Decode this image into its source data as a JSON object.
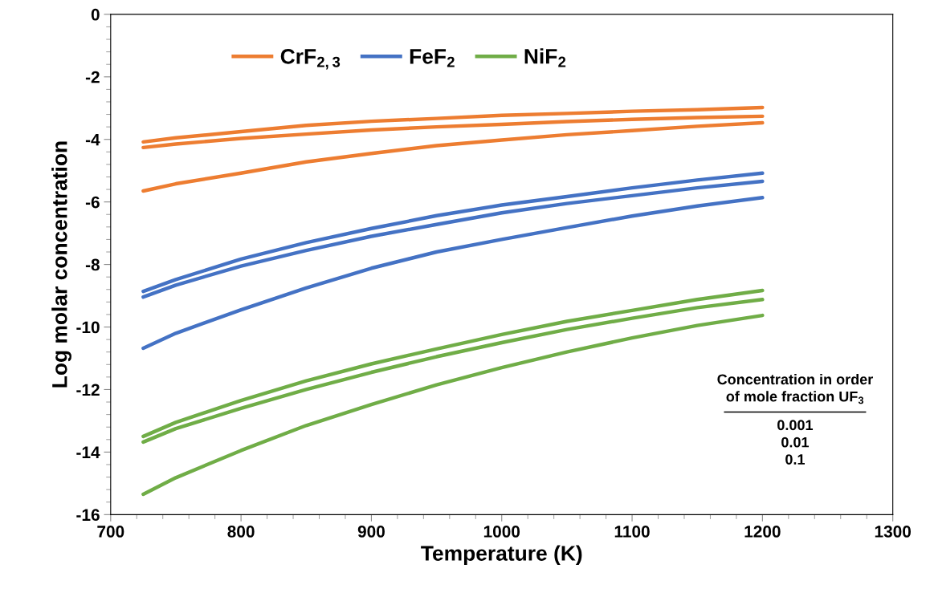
{
  "chart_data": {
    "type": "line",
    "xlabel": "Temperature (K)",
    "ylabel": "Log molar concentration",
    "x": [
      725,
      750,
      800,
      850,
      900,
      950,
      1000,
      1050,
      1100,
      1150,
      1200
    ],
    "series": [
      {
        "name": "CrF$_{2,3}$",
        "color": "#ed7d31",
        "values": [
          -4.08,
          -3.95,
          -3.75,
          -3.55,
          -3.42,
          -3.33,
          -3.23,
          -3.17,
          -3.1,
          -3.05,
          -2.98
        ]
      },
      {
        "color": "#ed7d31",
        "values": [
          -4.26,
          -4.15,
          -3.97,
          -3.83,
          -3.7,
          -3.6,
          -3.52,
          -3.43,
          -3.36,
          -3.3,
          -3.26
        ]
      },
      {
        "color": "#ed7d31",
        "values": [
          -5.65,
          -5.42,
          -5.08,
          -4.72,
          -4.45,
          -4.2,
          -4.02,
          -3.85,
          -3.72,
          -3.58,
          -3.47
        ]
      },
      {
        "name": "FeF$_{2}$",
        "color": "#4472c4",
        "values": [
          -8.86,
          -8.48,
          -7.83,
          -7.3,
          -6.85,
          -6.44,
          -6.1,
          -5.83,
          -5.55,
          -5.3,
          -5.08
        ]
      },
      {
        "color": "#4472c4",
        "values": [
          -9.04,
          -8.66,
          -8.05,
          -7.55,
          -7.1,
          -6.72,
          -6.35,
          -6.05,
          -5.8,
          -5.55,
          -5.34
        ]
      },
      {
        "color": "#4472c4",
        "values": [
          -10.68,
          -10.2,
          -9.45,
          -8.75,
          -8.12,
          -7.6,
          -7.2,
          -6.82,
          -6.45,
          -6.13,
          -5.86
        ]
      },
      {
        "name": "NiF$_{2}$",
        "color": "#70ad47",
        "values": [
          -13.5,
          -13.05,
          -12.35,
          -11.72,
          -11.18,
          -10.7,
          -10.24,
          -9.82,
          -9.47,
          -9.12,
          -8.83
        ]
      },
      {
        "color": "#70ad47",
        "values": [
          -13.68,
          -13.25,
          -12.6,
          -12.0,
          -11.45,
          -10.95,
          -10.5,
          -10.08,
          -9.72,
          -9.38,
          -9.12
        ]
      },
      {
        "color": "#70ad47",
        "values": [
          -15.35,
          -14.82,
          -13.95,
          -13.15,
          -12.48,
          -11.85,
          -11.3,
          -10.8,
          -10.35,
          -9.95,
          -9.63
        ]
      }
    ],
    "xlim": [
      700,
      1300
    ],
    "xticks": [
      700,
      800,
      900,
      1000,
      1100,
      1200,
      1300
    ],
    "ylim": [
      -16,
      0
    ],
    "yticks": [
      -16,
      -14,
      -12,
      -10,
      -8,
      -6,
      -4,
      -2,
      0
    ],
    "grid": false,
    "legend": "top",
    "marker": "none",
    "line_style": "solid",
    "annotations": [
      "Concentration in order\nof mole fraction UF$_{3}$",
      "0.001\n0.01\n0.1"
    ]
  }
}
